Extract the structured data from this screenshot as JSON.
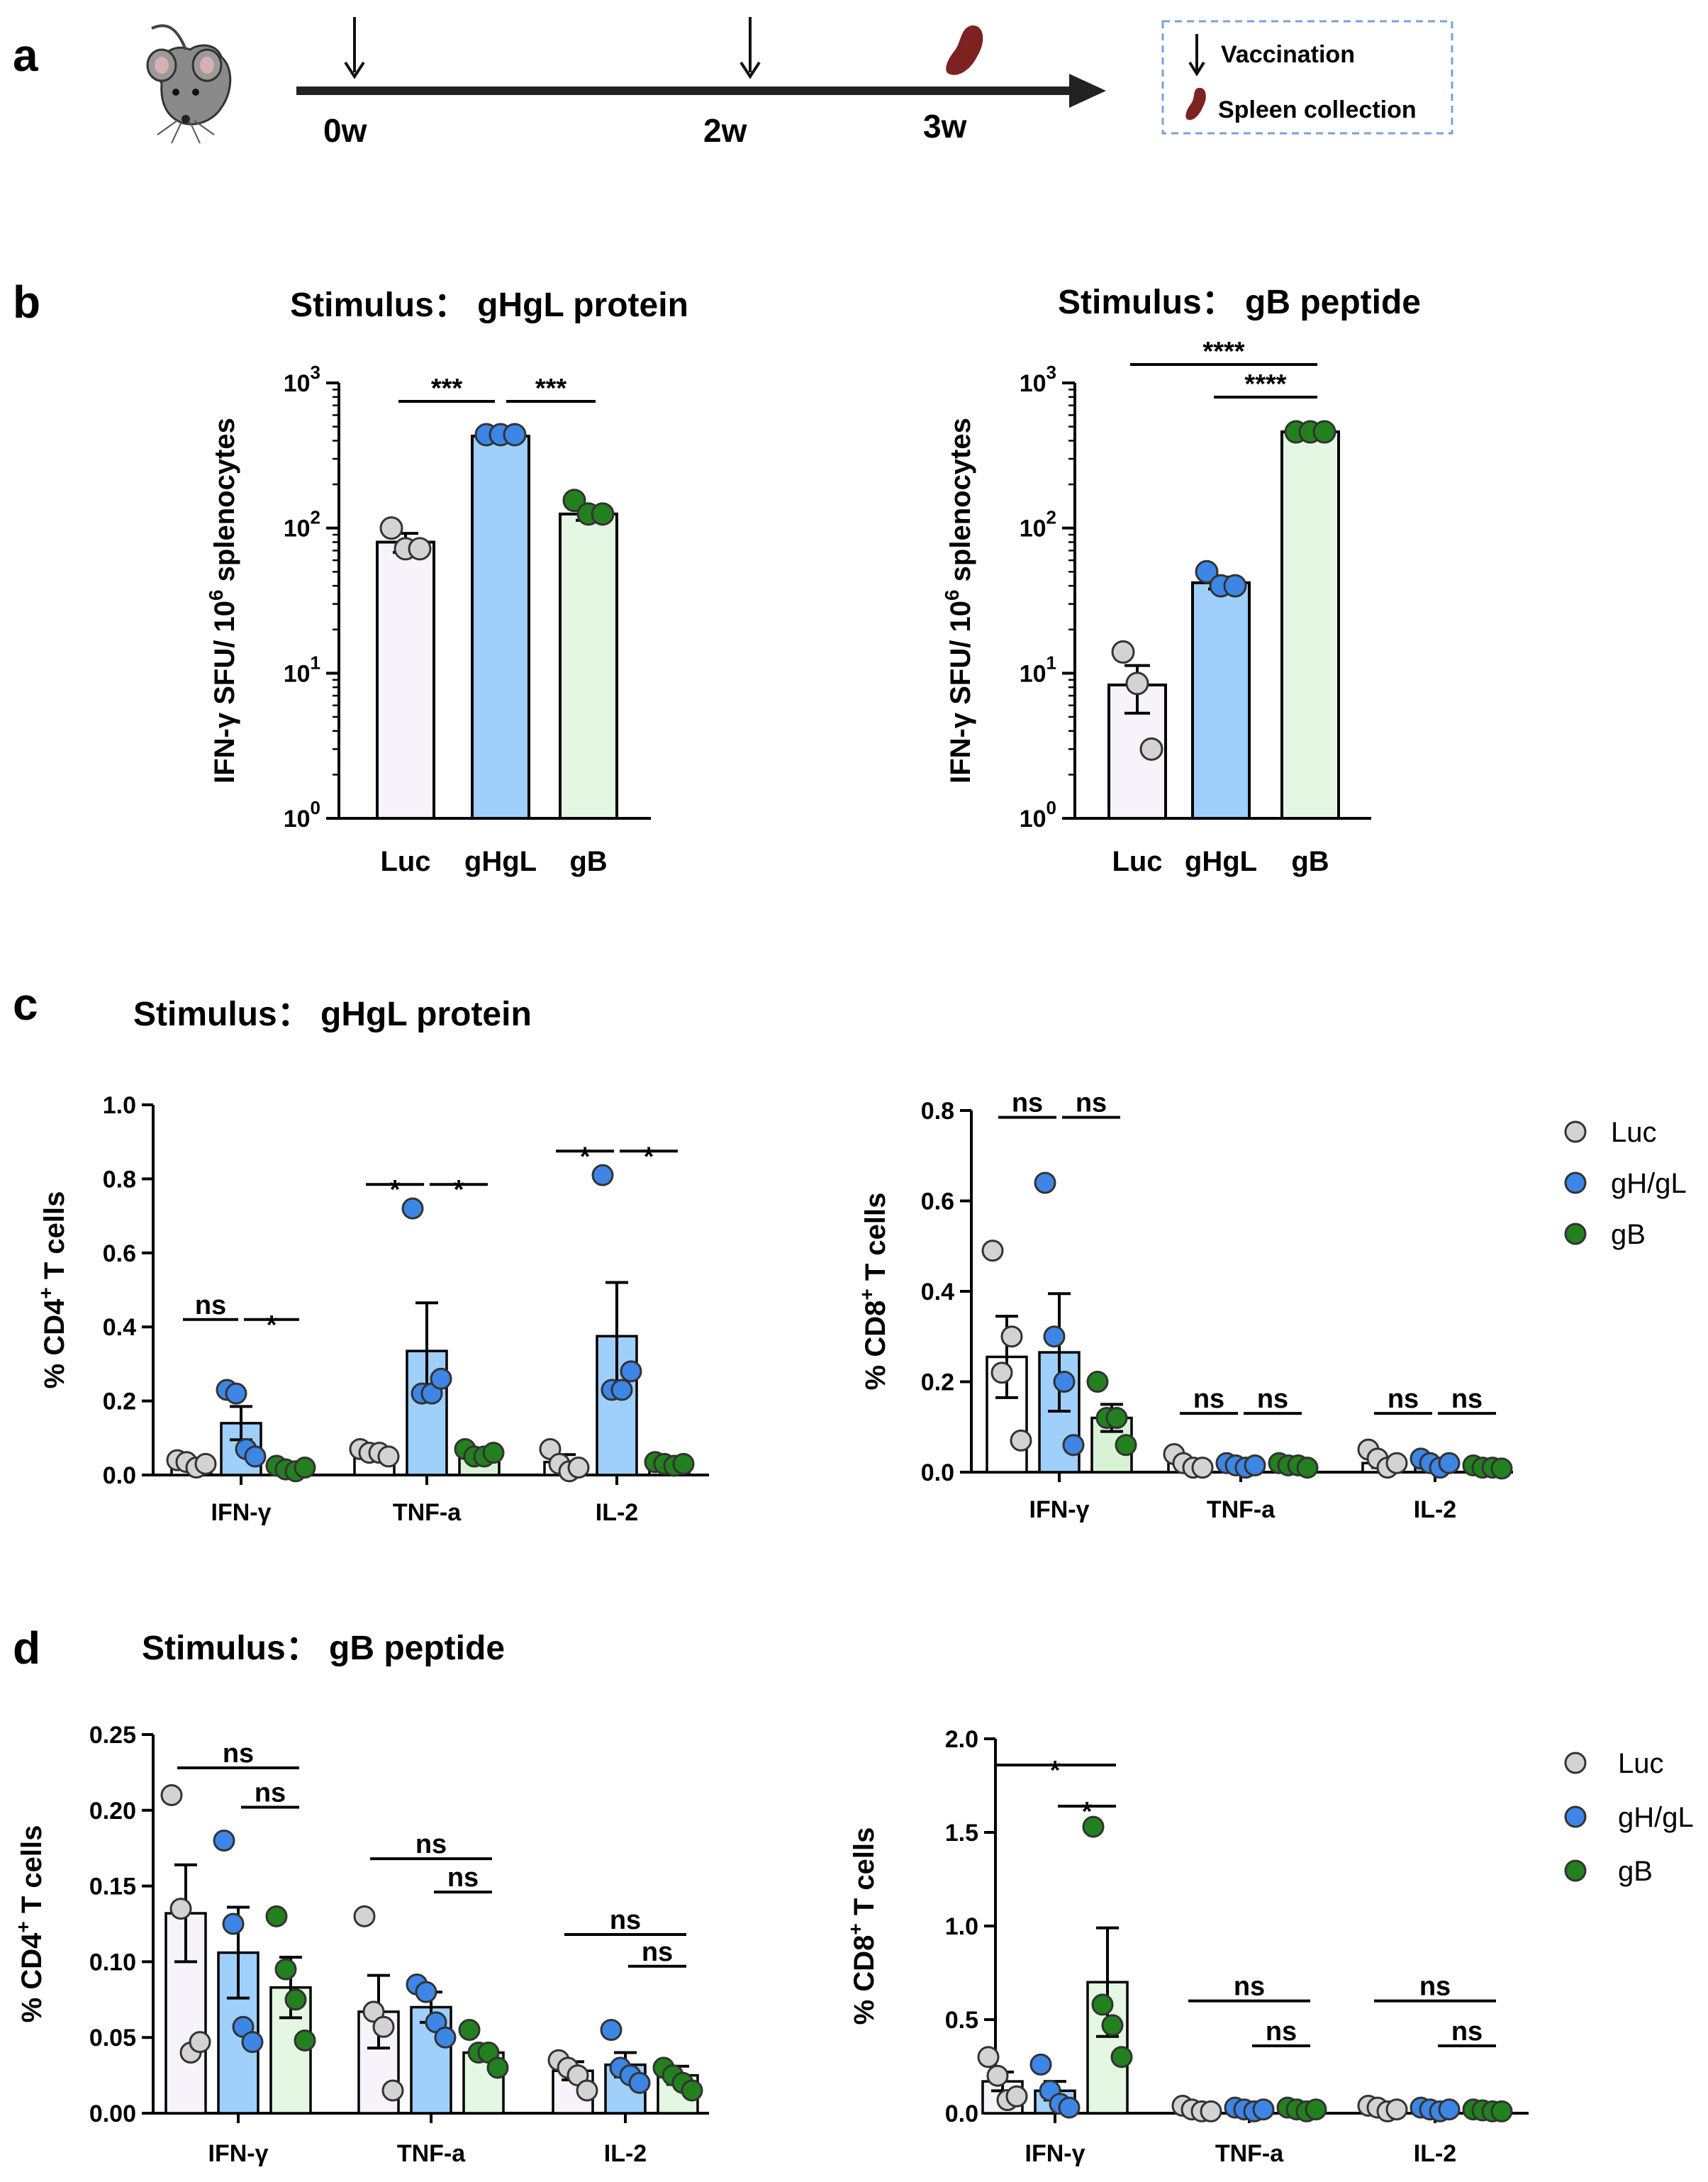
{
  "panels": {
    "a": "a",
    "b": "b",
    "c": "c",
    "d": "d"
  },
  "timeline": {
    "ticks": [
      "0w",
      "2w",
      "3w"
    ],
    "legend": {
      "vaccination": "Vaccination",
      "spleen": "Spleen collection"
    }
  },
  "section_titles": {
    "c": "Stimulus： gHgL protein",
    "d": "Stimulus： gB peptide"
  },
  "legend_items": [
    "Luc",
    "gH/gL",
    "gB"
  ],
  "colors": {
    "luc_fill": "#f6f4fa",
    "luc_point": "#d3d3d3",
    "ghgl_fill": "#9fd0fb",
    "ghgl_point": "#3d86e6",
    "gb_fill": "#e4f7e2",
    "gb_point": "#23801f",
    "c_fill": [
      "#ffffff",
      "#9fd0fb",
      "#d9f2d6"
    ]
  },
  "chart_data": [
    {
      "id": "b_left",
      "type": "bar",
      "title": "Stimulus： gHgL protein",
      "ylabel": "IFN-γ SFU/ 10^6 splenocytes",
      "ylabel_parts": {
        "pre": "IFN-γ SFU/ 10",
        "sup": "6",
        "post": " splenocytes"
      },
      "yscale": "log",
      "ylim": [
        1,
        1000
      ],
      "yticks": [
        {
          "base": "10",
          "exp": "0"
        },
        {
          "base": "10",
          "exp": "1"
        },
        {
          "base": "10",
          "exp": "2"
        },
        {
          "base": "10",
          "exp": "3"
        }
      ],
      "categories": [
        "Luc",
        "gHgL",
        "gB"
      ],
      "values": [
        80,
        430,
        125
      ],
      "errors": [
        12,
        20,
        12
      ],
      "points": [
        [
          100,
          72,
          72
        ],
        [
          440,
          440,
          440
        ],
        [
          155,
          125,
          125
        ]
      ],
      "significance": [
        {
          "from": 0,
          "to": 1,
          "label": "***"
        },
        {
          "from": 1,
          "to": 2,
          "label": "***"
        }
      ]
    },
    {
      "id": "b_right",
      "type": "bar",
      "title": "Stimulus： gB peptide",
      "ylabel": "IFN-γ SFU/ 10^6 splenocytes",
      "ylabel_parts": {
        "pre": "IFN-γ SFU/ 10",
        "sup": "6",
        "post": " splenocytes"
      },
      "yscale": "log",
      "ylim": [
        1,
        1000
      ],
      "yticks": [
        {
          "base": "10",
          "exp": "0"
        },
        {
          "base": "10",
          "exp": "1"
        },
        {
          "base": "10",
          "exp": "2"
        },
        {
          "base": "10",
          "exp": "3"
        }
      ],
      "categories": [
        "Luc",
        "gHgL",
        "gB"
      ],
      "values": [
        8.3,
        42,
        460
      ],
      "errors": [
        3,
        4,
        10
      ],
      "points": [
        [
          14,
          8.5,
          3
        ],
        [
          50,
          40,
          40
        ],
        [
          460,
          460,
          460
        ]
      ],
      "significance": [
        {
          "from": 0,
          "to": 2,
          "label": "****"
        },
        {
          "from": 1,
          "to": 2,
          "label": "****"
        }
      ]
    },
    {
      "id": "c_left",
      "type": "bar",
      "ylabel": "% CD4+ T cells",
      "ylabel_parts": {
        "pre": "% CD4",
        "sup": "+",
        "post": " T cells"
      },
      "ylim": [
        0,
        1.0
      ],
      "yticks": [
        "0.0",
        "0.2",
        "0.4",
        "0.6",
        "0.8",
        "1.0"
      ],
      "categories": [
        "IFN-γ",
        "TNF-a",
        "IL-2"
      ],
      "series": [
        {
          "name": "Luc",
          "values": [
            0.03,
            0.06,
            0.035
          ],
          "errors": [
            0.006,
            0.01,
            0.02
          ],
          "points": [
            [
              0.04,
              0.035,
              0.02,
              0.03
            ],
            [
              0.07,
              0.06,
              0.06,
              0.05
            ],
            [
              0.07,
              0.03,
              0.01,
              0.02
            ]
          ]
        },
        {
          "name": "gH/gL",
          "values": [
            0.14,
            0.335,
            0.375
          ],
          "errors": [
            0.045,
            0.13,
            0.145
          ],
          "points": [
            [
              0.23,
              0.22,
              0.07,
              0.05
            ],
            [
              0.72,
              0.22,
              0.22,
              0.26
            ],
            [
              0.81,
              0.23,
              0.23,
              0.28
            ]
          ]
        },
        {
          "name": "gB",
          "values": [
            0.02,
            0.06,
            0.03
          ],
          "errors": [
            0.006,
            0.01,
            0.006
          ],
          "points": [
            [
              0.025,
              0.015,
              0.01,
              0.02
            ],
            [
              0.07,
              0.05,
              0.05,
              0.06
            ],
            [
              0.035,
              0.03,
              0.025,
              0.03
            ]
          ]
        }
      ],
      "significance": [
        {
          "group": 0,
          "from": 0,
          "to": 1,
          "label": "ns",
          "y": 0.42
        },
        {
          "group": 0,
          "from": 1,
          "to": 2,
          "label": "*",
          "y": 0.42
        },
        {
          "group": 1,
          "from": 0,
          "to": 1,
          "label": "*",
          "y": 0.785
        },
        {
          "group": 1,
          "from": 1,
          "to": 2,
          "label": "*",
          "y": 0.785
        },
        {
          "group": 2,
          "from": 0,
          "to": 1,
          "label": "*",
          "y": 0.875
        },
        {
          "group": 2,
          "from": 1,
          "to": 2,
          "label": "*",
          "y": 0.875
        }
      ]
    },
    {
      "id": "c_right",
      "type": "bar",
      "ylabel": "% CD8+ T cells",
      "ylabel_parts": {
        "pre": "% CD8",
        "sup": "+",
        "post": " T cells"
      },
      "ylim": [
        0,
        0.8
      ],
      "yticks": [
        "0.0",
        "0.2",
        "0.4",
        "0.6",
        "0.8"
      ],
      "categories": [
        "IFN-γ",
        "TNF-a",
        "IL-2"
      ],
      "series": [
        {
          "name": "Luc",
          "values": [
            0.255,
            0.02,
            0.02
          ],
          "errors": [
            0.09,
            0.005,
            0.01
          ],
          "points": [
            [
              0.49,
              0.22,
              0.3,
              0.07
            ],
            [
              0.04,
              0.02,
              0.01,
              0.01
            ],
            [
              0.05,
              0.03,
              0.01,
              0.02
            ]
          ]
        },
        {
          "name": "gH/gL",
          "values": [
            0.265,
            0.015,
            0.015
          ],
          "errors": [
            0.13,
            0.003,
            0.005
          ],
          "points": [
            [
              0.64,
              0.3,
              0.2,
              0.06
            ],
            [
              0.02,
              0.015,
              0.01,
              0.015
            ],
            [
              0.03,
              0.02,
              0.01,
              0.02
            ]
          ]
        },
        {
          "name": "gB",
          "values": [
            0.12,
            0.015,
            0.01
          ],
          "errors": [
            0.03,
            0.003,
            0.003
          ],
          "points": [
            [
              0.2,
              0.12,
              0.12,
              0.06
            ],
            [
              0.02,
              0.015,
              0.015,
              0.01
            ],
            [
              0.015,
              0.01,
              0.01,
              0.008
            ]
          ]
        }
      ],
      "significance": [
        {
          "group": 0,
          "from": 0,
          "to": 1,
          "label": "ns",
          "y": 0.785
        },
        {
          "group": 0,
          "from": 1,
          "to": 2,
          "label": "ns",
          "y": 0.785
        },
        {
          "group": 1,
          "from": 0,
          "to": 1,
          "label": "ns",
          "y": 0.13
        },
        {
          "group": 1,
          "from": 1,
          "to": 2,
          "label": "ns",
          "y": 0.13
        },
        {
          "group": 2,
          "from": 0,
          "to": 1,
          "label": "ns",
          "y": 0.13
        },
        {
          "group": 2,
          "from": 1,
          "to": 2,
          "label": "ns",
          "y": 0.13
        }
      ]
    },
    {
      "id": "d_left",
      "type": "bar",
      "ylabel": "% CD4+ T cells",
      "ylabel_parts": {
        "pre": "% CD4",
        "sup": "+",
        "post": " T cells"
      },
      "ylim": [
        0,
        0.25
      ],
      "yticks": [
        "0.00",
        "0.05",
        "0.10",
        "0.15",
        "0.20",
        "0.25"
      ],
      "categories": [
        "IFN-γ",
        "TNF-a",
        "IL-2"
      ],
      "series": [
        {
          "name": "Luc",
          "values": [
            0.132,
            0.067,
            0.028
          ],
          "errors": [
            0.032,
            0.024,
            0.006
          ],
          "points": [
            [
              0.21,
              0.135,
              0.04,
              0.047
            ],
            [
              0.13,
              0.067,
              0.057,
              0.015
            ],
            [
              0.035,
              0.03,
              0.025,
              0.015
            ]
          ]
        },
        {
          "name": "gH/gL",
          "values": [
            0.106,
            0.07,
            0.032
          ],
          "errors": [
            0.03,
            0.01,
            0.008
          ],
          "points": [
            [
              0.18,
              0.125,
              0.057,
              0.047
            ],
            [
              0.085,
              0.08,
              0.06,
              0.05
            ],
            [
              0.055,
              0.03,
              0.025,
              0.02
            ]
          ]
        },
        {
          "name": "gB",
          "values": [
            0.083,
            0.04,
            0.025
          ],
          "errors": [
            0.02,
            0.005,
            0.006
          ],
          "points": [
            [
              0.13,
              0.095,
              0.075,
              0.048
            ],
            [
              0.055,
              0.04,
              0.04,
              0.03
            ],
            [
              0.03,
              0.025,
              0.02,
              0.015
            ]
          ]
        }
      ],
      "significance": [
        {
          "group": 0,
          "from": 0,
          "to": 2,
          "label": "ns",
          "y": 0.228
        },
        {
          "group": 0,
          "from": 1,
          "to": 2,
          "label": "ns",
          "y": 0.202
        },
        {
          "group": 1,
          "from": 0,
          "to": 2,
          "label": "ns",
          "y": 0.168
        },
        {
          "group": 1,
          "from": 1,
          "to": 2,
          "label": "ns",
          "y": 0.146
        },
        {
          "group": 2,
          "from": 0,
          "to": 2,
          "label": "ns",
          "y": 0.118
        },
        {
          "group": 2,
          "from": 1,
          "to": 2,
          "label": "ns",
          "y": 0.097
        }
      ]
    },
    {
      "id": "d_right",
      "type": "bar",
      "ylabel": "% CD8+ T cells",
      "ylabel_parts": {
        "pre": "% CD8",
        "sup": "+",
        "post": " T cells"
      },
      "ylim": [
        0,
        2.0
      ],
      "yticks": [
        "0.0",
        "0.5",
        "1.0",
        "1.5",
        "2.0"
      ],
      "categories": [
        "IFN-γ",
        "TNF-a",
        "IL-2"
      ],
      "series": [
        {
          "name": "Luc",
          "values": [
            0.17,
            0.02,
            0.02
          ],
          "errors": [
            0.05,
            0.005,
            0.005
          ],
          "points": [
            [
              0.3,
              0.2,
              0.07,
              0.09
            ],
            [
              0.04,
              0.02,
              0.01,
              0.01
            ],
            [
              0.04,
              0.03,
              0.01,
              0.02
            ]
          ]
        },
        {
          "name": "gH/gL",
          "values": [
            0.12,
            0.02,
            0.02
          ],
          "errors": [
            0.05,
            0.005,
            0.005
          ],
          "points": [
            [
              0.26,
              0.12,
              0.05,
              0.03
            ],
            [
              0.03,
              0.02,
              0.01,
              0.02
            ],
            [
              0.03,
              0.02,
              0.01,
              0.02
            ]
          ]
        },
        {
          "name": "gB",
          "values": [
            0.7,
            0.02,
            0.015
          ],
          "errors": [
            0.29,
            0.005,
            0.005
          ],
          "points": [
            [
              1.53,
              0.58,
              0.47,
              0.3
            ],
            [
              0.03,
              0.02,
              0.01,
              0.02
            ],
            [
              0.02,
              0.015,
              0.01,
              0.01
            ]
          ]
        }
      ],
      "significance": [
        {
          "group": 0,
          "from": 0,
          "to": 2,
          "label": "*",
          "y": 1.86
        },
        {
          "group": 0,
          "from": 1,
          "to": 2,
          "label": "*",
          "y": 1.64
        },
        {
          "group": 1,
          "from": 0,
          "to": 2,
          "label": "ns",
          "y": 0.6
        },
        {
          "group": 1,
          "from": 1,
          "to": 2,
          "label": "ns",
          "y": 0.36
        },
        {
          "group": 2,
          "from": 0,
          "to": 2,
          "label": "ns",
          "y": 0.6
        },
        {
          "group": 2,
          "from": 1,
          "to": 2,
          "label": "ns",
          "y": 0.36
        }
      ]
    }
  ]
}
